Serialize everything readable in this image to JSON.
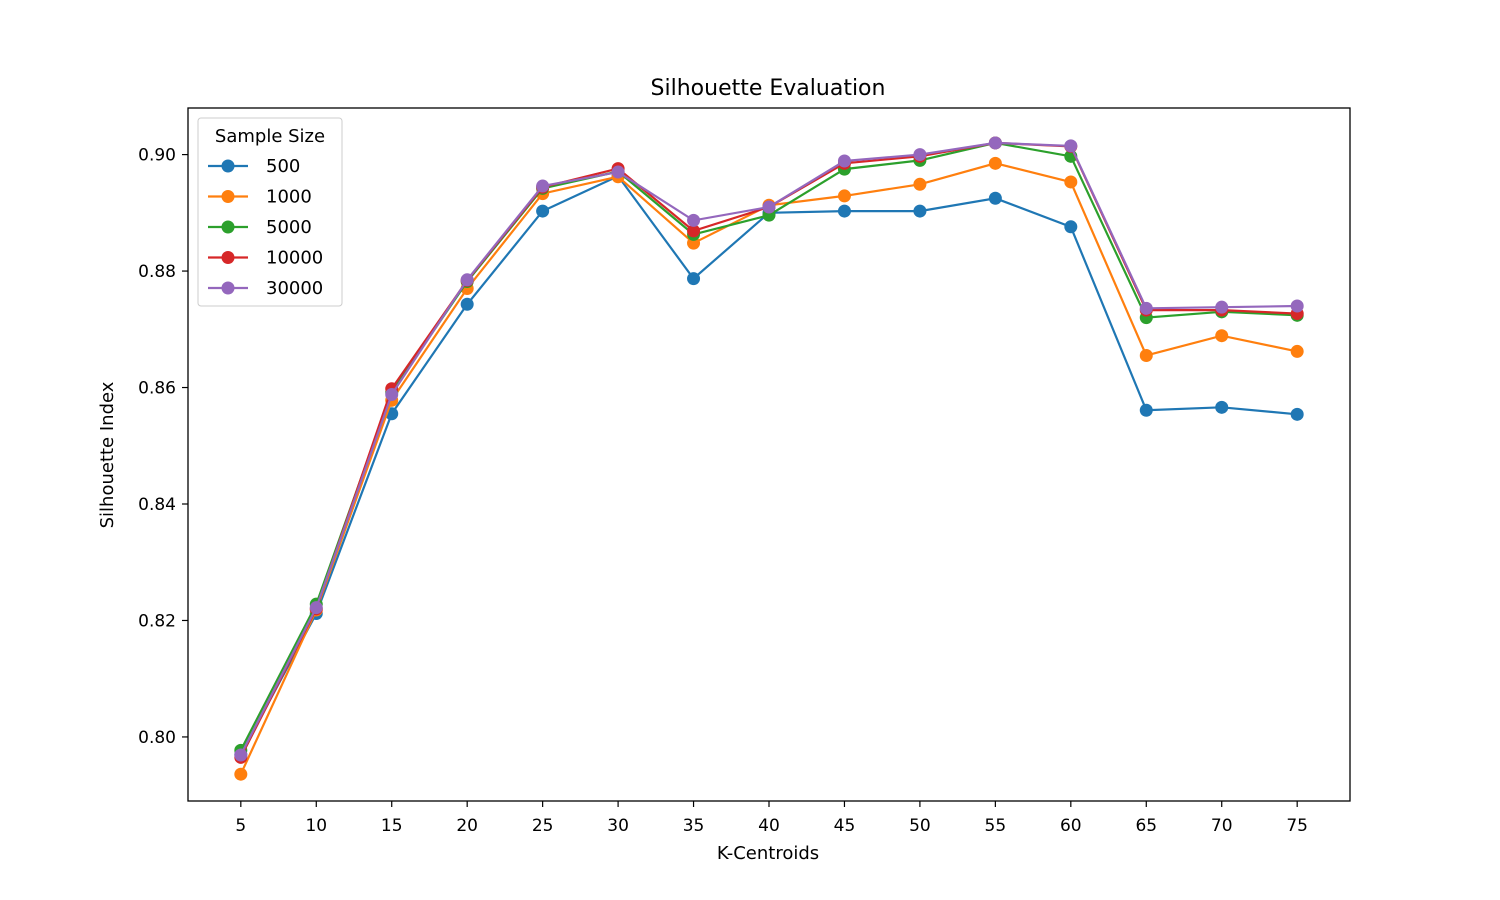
{
  "chart_data": {
    "type": "line",
    "title": "Silhouette Evaluation",
    "xlabel": "K-Centroids",
    "ylabel": "Silhouette Index",
    "x": [
      5,
      10,
      15,
      20,
      25,
      30,
      35,
      40,
      45,
      50,
      55,
      60,
      65,
      70,
      75
    ],
    "xlim": [
      1.5,
      78.5
    ],
    "ylim": [
      0.789,
      0.908
    ],
    "yticks": [
      0.8,
      0.82,
      0.84,
      0.86,
      0.88,
      0.9
    ],
    "ytick_labels": [
      "0.80",
      "0.82",
      "0.84",
      "0.86",
      "0.88",
      "0.90"
    ],
    "grid": false,
    "legend": {
      "title": "Sample Size",
      "placement": "top-left"
    },
    "series": [
      {
        "name": "500",
        "color": "#1f77b4",
        "values": [
          0.797,
          0.8212,
          0.8555,
          0.8743,
          0.8903,
          0.8963,
          0.8787,
          0.89,
          0.8903,
          0.8903,
          0.8925,
          0.8876,
          0.8561,
          0.8566,
          0.8554
        ]
      },
      {
        "name": "1000",
        "color": "#ff7f0e",
        "values": [
          0.7936,
          0.8218,
          0.8578,
          0.877,
          0.8933,
          0.8962,
          0.8848,
          0.8913,
          0.8929,
          0.8949,
          0.8985,
          0.8953,
          0.8655,
          0.8689,
          0.8662
        ]
      },
      {
        "name": "5000",
        "color": "#2ca02c",
        "values": [
          0.7977,
          0.8228,
          0.8592,
          0.8782,
          0.8942,
          0.8971,
          0.8863,
          0.8896,
          0.8975,
          0.899,
          0.902,
          0.8997,
          0.872,
          0.873,
          0.8724
        ]
      },
      {
        "name": "10000",
        "color": "#d62728",
        "values": [
          0.7965,
          0.822,
          0.8598,
          0.8784,
          0.8944,
          0.8976,
          0.8869,
          0.891,
          0.8985,
          0.8997,
          0.902,
          0.9014,
          0.8733,
          0.8733,
          0.8727
        ]
      },
      {
        "name": "30000",
        "color": "#9467bd",
        "values": [
          0.7969,
          0.8222,
          0.8588,
          0.8785,
          0.8946,
          0.897,
          0.8887,
          0.891,
          0.8989,
          0.9,
          0.902,
          0.9015,
          0.8736,
          0.8738,
          0.874
        ]
      }
    ]
  }
}
